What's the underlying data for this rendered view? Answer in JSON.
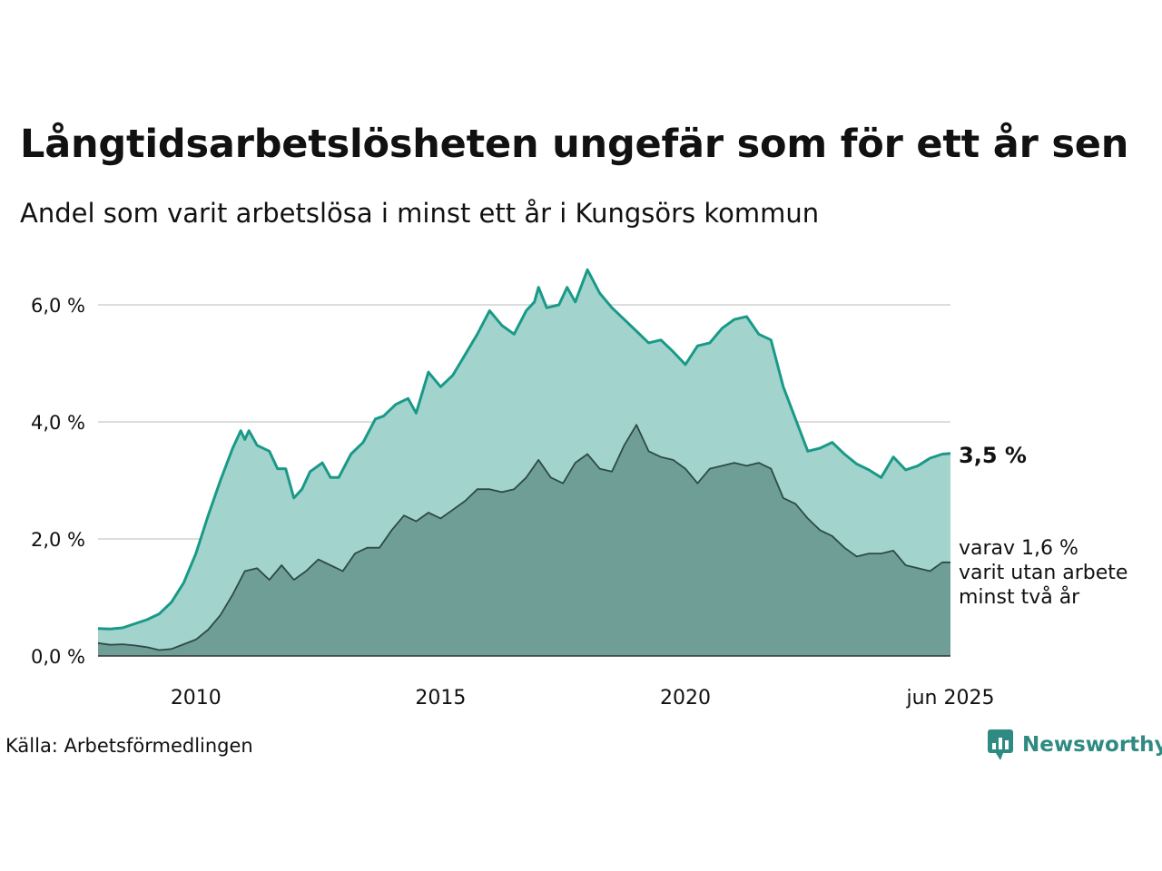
{
  "title": "Långtidsarbetslösheten ungefär som för ett år sen",
  "subtitle": "Andel som varit arbetslösa i minst ett år i Kungsörs kommun",
  "source": "Källa: Arbetsförmedlingen",
  "brand": "Newsworthy",
  "logo_icon": "newsworthy-chart-bubble-icon",
  "end_label": "3,5 %",
  "sub_label_lines": [
    "varav 1,6 %",
    "varit utan arbete",
    "minst två år"
  ],
  "colors": {
    "total_line": "#1a9988",
    "total_fill": "#a2d4cd",
    "sub_line": "#2d4a46",
    "sub_fill": "#6f9e97",
    "grid": "#dddddd",
    "brand": "#2f8a82"
  },
  "chart_data": {
    "type": "area",
    "x_unit": "date (year-month)",
    "x_range": [
      "2008-01",
      "2025-06"
    ],
    "y_unit": "percent",
    "ylim": [
      0,
      6.6
    ],
    "y_ticks": [
      0,
      2,
      4,
      6
    ],
    "y_tick_labels": [
      "0,0 %",
      "2,0 %",
      "4,0 %",
      "6,0 %"
    ],
    "x_ticks": [
      "2010-01",
      "2015-01",
      "2020-01",
      "2025-06"
    ],
    "x_tick_labels": [
      "2010",
      "2015",
      "2020",
      "jun 2025"
    ],
    "grid": true,
    "legend": "none (direct labels at right)",
    "series": [
      {
        "key": "total",
        "points": [
          [
            "2008-01",
            0.47
          ],
          [
            "2008-04",
            0.46
          ],
          [
            "2008-07",
            0.48
          ],
          [
            "2008-10",
            0.55
          ],
          [
            "2009-01",
            0.62
          ],
          [
            "2009-04",
            0.72
          ],
          [
            "2009-07",
            0.92
          ],
          [
            "2009-10",
            1.25
          ],
          [
            "2010-01",
            1.75
          ],
          [
            "2010-04",
            2.4
          ],
          [
            "2010-07",
            3.0
          ],
          [
            "2010-10",
            3.55
          ],
          [
            "2010-12",
            3.85
          ],
          [
            "2011-01",
            3.7
          ],
          [
            "2011-02",
            3.85
          ],
          [
            "2011-04",
            3.6
          ],
          [
            "2011-07",
            3.5
          ],
          [
            "2011-09",
            3.2
          ],
          [
            "2011-11",
            3.2
          ],
          [
            "2012-01",
            2.7
          ],
          [
            "2012-03",
            2.85
          ],
          [
            "2012-05",
            3.15
          ],
          [
            "2012-08",
            3.3
          ],
          [
            "2012-10",
            3.05
          ],
          [
            "2012-12",
            3.05
          ],
          [
            "2013-03",
            3.45
          ],
          [
            "2013-06",
            3.65
          ],
          [
            "2013-09",
            4.05
          ],
          [
            "2013-11",
            4.1
          ],
          [
            "2014-02",
            4.3
          ],
          [
            "2014-05",
            4.4
          ],
          [
            "2014-07",
            4.15
          ],
          [
            "2014-10",
            4.85
          ],
          [
            "2015-01",
            4.6
          ],
          [
            "2015-04",
            4.8
          ],
          [
            "2015-07",
            5.15
          ],
          [
            "2015-10",
            5.5
          ],
          [
            "2016-01",
            5.9
          ],
          [
            "2016-04",
            5.65
          ],
          [
            "2016-07",
            5.5
          ],
          [
            "2016-10",
            5.9
          ],
          [
            "2016-12",
            6.05
          ],
          [
            "2017-01",
            6.3
          ],
          [
            "2017-03",
            5.95
          ],
          [
            "2017-06",
            6.0
          ],
          [
            "2017-08",
            6.3
          ],
          [
            "2017-10",
            6.05
          ],
          [
            "2018-01",
            6.6
          ],
          [
            "2018-04",
            6.2
          ],
          [
            "2018-07",
            5.95
          ],
          [
            "2018-10",
            5.75
          ],
          [
            "2019-01",
            5.55
          ],
          [
            "2019-04",
            5.35
          ],
          [
            "2019-07",
            5.4
          ],
          [
            "2019-10",
            5.2
          ],
          [
            "2020-01",
            4.98
          ],
          [
            "2020-04",
            5.3
          ],
          [
            "2020-07",
            5.35
          ],
          [
            "2020-10",
            5.6
          ],
          [
            "2021-01",
            5.75
          ],
          [
            "2021-04",
            5.8
          ],
          [
            "2021-07",
            5.5
          ],
          [
            "2021-10",
            5.4
          ],
          [
            "2022-01",
            4.6
          ],
          [
            "2022-04",
            4.05
          ],
          [
            "2022-07",
            3.5
          ],
          [
            "2022-10",
            3.55
          ],
          [
            "2023-01",
            3.65
          ],
          [
            "2023-04",
            3.45
          ],
          [
            "2023-07",
            3.28
          ],
          [
            "2023-10",
            3.18
          ],
          [
            "2024-01",
            3.05
          ],
          [
            "2024-04",
            3.4
          ],
          [
            "2024-07",
            3.18
          ],
          [
            "2024-10",
            3.25
          ],
          [
            "2025-01",
            3.38
          ],
          [
            "2025-04",
            3.45
          ],
          [
            "2025-06",
            3.46
          ]
        ]
      },
      {
        "key": "minst två år",
        "points": [
          [
            "2008-01",
            0.22
          ],
          [
            "2008-04",
            0.19
          ],
          [
            "2008-07",
            0.2
          ],
          [
            "2008-10",
            0.18
          ],
          [
            "2009-01",
            0.15
          ],
          [
            "2009-04",
            0.1
          ],
          [
            "2009-07",
            0.12
          ],
          [
            "2009-10",
            0.2
          ],
          [
            "2010-01",
            0.28
          ],
          [
            "2010-04",
            0.45
          ],
          [
            "2010-07",
            0.7
          ],
          [
            "2010-10",
            1.05
          ],
          [
            "2011-01",
            1.45
          ],
          [
            "2011-04",
            1.5
          ],
          [
            "2011-07",
            1.3
          ],
          [
            "2011-10",
            1.55
          ],
          [
            "2012-01",
            1.3
          ],
          [
            "2012-04",
            1.45
          ],
          [
            "2012-07",
            1.65
          ],
          [
            "2012-10",
            1.55
          ],
          [
            "2013-01",
            1.45
          ],
          [
            "2013-04",
            1.75
          ],
          [
            "2013-07",
            1.85
          ],
          [
            "2013-10",
            1.85
          ],
          [
            "2014-01",
            2.15
          ],
          [
            "2014-04",
            2.4
          ],
          [
            "2014-07",
            2.3
          ],
          [
            "2014-10",
            2.45
          ],
          [
            "2015-01",
            2.35
          ],
          [
            "2015-04",
            2.5
          ],
          [
            "2015-07",
            2.65
          ],
          [
            "2015-10",
            2.85
          ],
          [
            "2016-01",
            2.85
          ],
          [
            "2016-04",
            2.8
          ],
          [
            "2016-07",
            2.85
          ],
          [
            "2016-10",
            3.05
          ],
          [
            "2017-01",
            3.35
          ],
          [
            "2017-04",
            3.05
          ],
          [
            "2017-07",
            2.95
          ],
          [
            "2017-10",
            3.3
          ],
          [
            "2018-01",
            3.45
          ],
          [
            "2018-04",
            3.2
          ],
          [
            "2018-07",
            3.15
          ],
          [
            "2018-10",
            3.6
          ],
          [
            "2019-01",
            3.95
          ],
          [
            "2019-04",
            3.5
          ],
          [
            "2019-07",
            3.4
          ],
          [
            "2019-10",
            3.35
          ],
          [
            "2020-01",
            3.2
          ],
          [
            "2020-04",
            2.95
          ],
          [
            "2020-07",
            3.2
          ],
          [
            "2020-10",
            3.25
          ],
          [
            "2021-01",
            3.3
          ],
          [
            "2021-04",
            3.25
          ],
          [
            "2021-07",
            3.3
          ],
          [
            "2021-10",
            3.2
          ],
          [
            "2022-01",
            2.7
          ],
          [
            "2022-04",
            2.6
          ],
          [
            "2022-07",
            2.35
          ],
          [
            "2022-10",
            2.15
          ],
          [
            "2023-01",
            2.05
          ],
          [
            "2023-04",
            1.85
          ],
          [
            "2023-07",
            1.7
          ],
          [
            "2023-10",
            1.75
          ],
          [
            "2024-01",
            1.75
          ],
          [
            "2024-04",
            1.8
          ],
          [
            "2024-07",
            1.55
          ],
          [
            "2024-10",
            1.5
          ],
          [
            "2025-01",
            1.45
          ],
          [
            "2025-04",
            1.6
          ],
          [
            "2025-06",
            1.6
          ]
        ]
      }
    ]
  }
}
